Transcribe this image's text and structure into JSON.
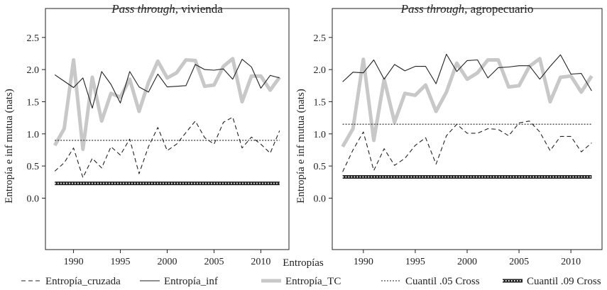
{
  "chart_data": {
    "xlabel": "Entropías",
    "ylabel": "Entropía e inf mutua (nats)",
    "x": [
      1988,
      1989,
      1990,
      1991,
      1992,
      1993,
      1994,
      1995,
      1996,
      1997,
      1998,
      1999,
      2000,
      2001,
      2002,
      2003,
      2004,
      2005,
      2006,
      2007,
      2008,
      2009,
      2010,
      2011,
      2012
    ],
    "xlim": [
      1987,
      2013
    ],
    "xticks": [
      1990,
      1995,
      2000,
      2005,
      2010
    ],
    "ylim": [
      -0.8,
      2.95
    ],
    "yticks": [
      0.0,
      0.5,
      1.0,
      1.5,
      2.0,
      2.5
    ],
    "ytick_labels": [
      "0.0",
      "0.5",
      "1.0",
      "1.5",
      "2.0",
      "2.5"
    ],
    "legend": [
      {
        "key": "cruzada",
        "label": "Entropía_cruzada"
      },
      {
        "key": "inf",
        "label": "Entropía_inf"
      },
      {
        "key": "tc",
        "label": "Entropía_TC"
      },
      {
        "key": "q05",
        "label": "Cuantil .05 Cross"
      },
      {
        "key": "q09",
        "label": "Cuantil .09 Cross"
      }
    ],
    "panels": [
      {
        "type": "line",
        "title_italic": "Pass through",
        "title_rest": ", vivienda",
        "series": [
          {
            "key": "cruzada",
            "name": "Entropía_cruzada",
            "values": [
              0.42,
              0.55,
              0.78,
              0.32,
              0.62,
              0.47,
              0.8,
              0.67,
              0.92,
              0.38,
              0.8,
              1.1,
              0.74,
              0.84,
              1.02,
              1.2,
              0.94,
              0.84,
              1.18,
              1.26,
              0.78,
              0.95,
              0.84,
              0.7,
              1.05
            ]
          },
          {
            "key": "inf",
            "name": "Entropía_inf",
            "values": [
              1.92,
              1.82,
              1.72,
              1.87,
              1.4,
              1.97,
              1.77,
              1.48,
              1.97,
              1.73,
              1.65,
              1.93,
              1.73,
              1.74,
              1.75,
              2.08,
              2.0,
              1.99,
              2.01,
              1.85,
              2.16,
              2.04,
              1.71,
              1.91,
              1.87
            ]
          },
          {
            "key": "tc",
            "name": "Entropía_TC",
            "values": [
              0.82,
              1.08,
              2.15,
              0.76,
              1.88,
              1.2,
              1.63,
              1.57,
              1.85,
              1.35,
              1.8,
              2.13,
              1.87,
              1.95,
              2.15,
              2.14,
              1.74,
              1.76,
              2.05,
              2.17,
              1.5,
              1.9,
              1.9,
              1.68,
              1.88
            ]
          },
          {
            "key": "q05",
            "name": "Cuantil .05 Cross",
            "values": [
              0.9,
              0.9,
              0.9,
              0.9,
              0.9,
              0.9,
              0.9,
              0.9,
              0.9,
              0.9,
              0.9,
              0.9,
              0.9,
              0.9,
              0.9,
              0.9,
              0.9,
              0.9,
              0.9,
              0.9,
              0.9,
              0.9,
              0.9,
              0.9,
              0.9
            ]
          },
          {
            "key": "q09",
            "name": "Cuantil .09 Cross",
            "values": [
              0.23,
              0.23,
              0.23,
              0.23,
              0.23,
              0.23,
              0.23,
              0.23,
              0.23,
              0.23,
              0.23,
              0.23,
              0.23,
              0.23,
              0.23,
              0.23,
              0.23,
              0.23,
              0.23,
              0.23,
              0.23,
              0.23,
              0.23,
              0.23,
              0.23
            ]
          }
        ]
      },
      {
        "type": "line",
        "title_italic": "Pass through",
        "title_rest": ", agropecuario",
        "series": [
          {
            "key": "cruzada",
            "name": "Entropía_cruzada",
            "values": [
              0.41,
              0.75,
              1.03,
              0.43,
              0.77,
              0.51,
              0.62,
              0.82,
              0.94,
              0.53,
              0.97,
              1.15,
              1.01,
              1.01,
              1.08,
              1.07,
              0.97,
              1.17,
              1.2,
              1.03,
              0.74,
              0.96,
              0.96,
              0.72,
              0.86
            ]
          },
          {
            "key": "inf",
            "name": "Entropía_inf",
            "values": [
              1.81,
              1.96,
              1.95,
              2.15,
              1.85,
              2.08,
              1.98,
              2.05,
              2.05,
              1.78,
              2.24,
              1.97,
              2.14,
              2.15,
              1.87,
              2.03,
              2.04,
              2.06,
              2.06,
              1.85,
              2.05,
              2.23,
              1.93,
              1.94,
              1.67
            ]
          },
          {
            "key": "tc",
            "name": "Entropía_TC",
            "values": [
              0.8,
              1.08,
              2.16,
              0.9,
              1.85,
              1.18,
              1.63,
              1.6,
              1.76,
              1.35,
              1.65,
              2.1,
              1.85,
              1.95,
              2.15,
              2.15,
              1.73,
              1.75,
              2.05,
              2.17,
              1.5,
              1.88,
              1.9,
              1.65,
              1.9
            ]
          },
          {
            "key": "q05",
            "name": "Cuantil .05 Cross",
            "values": [
              1.15,
              1.15,
              1.15,
              1.15,
              1.15,
              1.15,
              1.15,
              1.15,
              1.15,
              1.15,
              1.15,
              1.15,
              1.15,
              1.15,
              1.15,
              1.15,
              1.15,
              1.15,
              1.15,
              1.15,
              1.15,
              1.15,
              1.15,
              1.15,
              1.15
            ]
          },
          {
            "key": "q09",
            "name": "Cuantil .09 Cross",
            "values": [
              0.33,
              0.33,
              0.33,
              0.33,
              0.33,
              0.33,
              0.33,
              0.33,
              0.33,
              0.33,
              0.33,
              0.33,
              0.33,
              0.33,
              0.33,
              0.33,
              0.33,
              0.33,
              0.33,
              0.33,
              0.33,
              0.33,
              0.33,
              0.33,
              0.33
            ]
          }
        ]
      }
    ]
  }
}
